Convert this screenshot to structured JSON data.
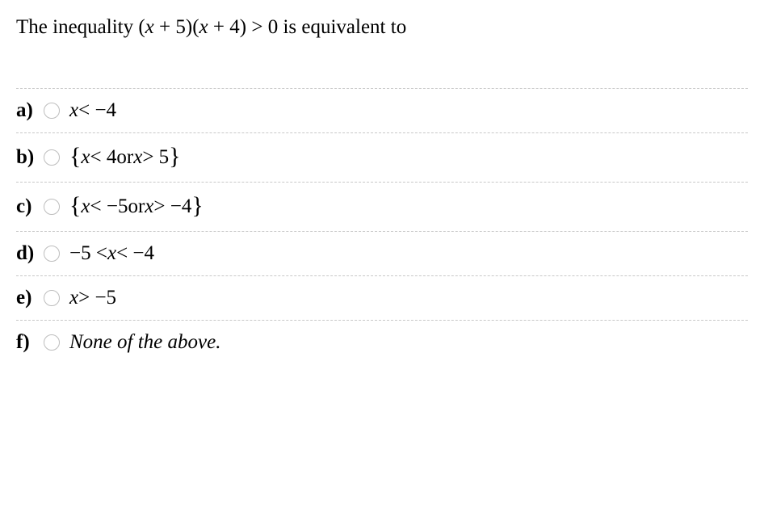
{
  "question": {
    "prefix": "The inequality ",
    "lparen": "(",
    "x1": "x",
    "plus5": " + 5",
    "rparen": ")",
    "lparen2": "(",
    "x2": "x",
    "plus4": " + 4",
    "rparen2": ")",
    "gt0": " > 0",
    "suffix": " is equivalent to"
  },
  "options": {
    "a": {
      "label": "a)",
      "x": "x",
      "rest": " < −4"
    },
    "b": {
      "label": "b)",
      "lbrace": "{",
      "x1": "x",
      "mid1": " < 4 ",
      "or": "or",
      "sp": " ",
      "x2": "x",
      "mid2": " > 5",
      "rbrace": "}"
    },
    "c": {
      "label": "c)",
      "lbrace": "{",
      "x1": "x",
      "mid1": " < −5 ",
      "or": "or",
      "sp": " ",
      "x2": "x",
      "mid2": " > −4",
      "rbrace": "}"
    },
    "d": {
      "label": "d)",
      "lead": "−5 < ",
      "x": "x",
      "tail": " < −4"
    },
    "e": {
      "label": "e)",
      "x": "x",
      "rest": " > −5"
    },
    "f": {
      "label": "f)",
      "text": "None of the above."
    }
  },
  "style": {
    "text_color": "#000000",
    "background_color": "#ffffff",
    "divider_color": "#c8c8c8",
    "radio_border": "#bdbdbd",
    "body_fontsize": 25,
    "label_fontweight": "bold"
  }
}
